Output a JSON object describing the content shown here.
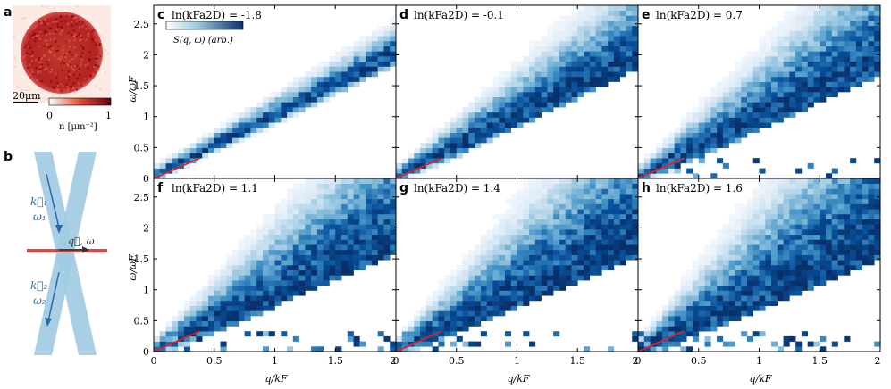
{
  "colors": {
    "heat_max": "#08306b",
    "heat_mid": "#4a90c8",
    "heat_low": "#deebf7",
    "density_high": "#a50f15",
    "density_low": "#fee5d9",
    "beam": "#9ecae1",
    "beam_arrow": "#2b6aa6",
    "red_line": "#d62728"
  },
  "panel_a": {
    "letter": "a",
    "scale_bar": "20μm",
    "colorbar_min": "0",
    "colorbar_max": "1",
    "colorbar_label": "n [μm⁻²]"
  },
  "panel_b": {
    "letter": "b",
    "k1_label": "k⃗₁",
    "w1_label": "ω₁",
    "k2_label": "k⃗₂",
    "w2_label": "ω₂",
    "qw_label": "q⃗, ω"
  },
  "colorbar_label": "S(q, ω) (arb.)",
  "axes": {
    "xlabel": "q/kF",
    "ylabel": "ω/ωF",
    "xticks": [
      "0",
      "0.5",
      "1",
      "1.5",
      "2"
    ],
    "yticks": [
      "0",
      "0.5",
      "1",
      "1.5",
      "2",
      "2.5"
    ]
  },
  "chart_data": {
    "type": "heatmap",
    "x_range": [
      0,
      2
    ],
    "y_range": [
      0,
      2.8
    ],
    "xlabel": "q/kF",
    "ylabel": "ω/ωF",
    "panels": [
      {
        "letter": "c",
        "title": "ln(kFa2D) = -1.8",
        "param": -1.8,
        "spread": 0.1,
        "slope": 0.98
      },
      {
        "letter": "d",
        "title": "ln(kFa2D) = -0.1",
        "param": -0.1,
        "spread": 0.35,
        "slope": 0.95
      },
      {
        "letter": "e",
        "title": "ln(kFa2D) = 0.7",
        "param": 0.7,
        "spread": 0.5,
        "slope": 0.9
      },
      {
        "letter": "f",
        "title": "ln(kFa2D) = 1.1",
        "param": 1.1,
        "spread": 0.6,
        "slope": 0.85
      },
      {
        "letter": "g",
        "title": "ln(kFa2D) = 1.4",
        "param": 1.4,
        "spread": 0.7,
        "slope": 0.82
      },
      {
        "letter": "h",
        "title": "ln(kFa2D) = 1.6",
        "param": 1.6,
        "spread": 0.8,
        "slope": 0.8
      }
    ]
  }
}
